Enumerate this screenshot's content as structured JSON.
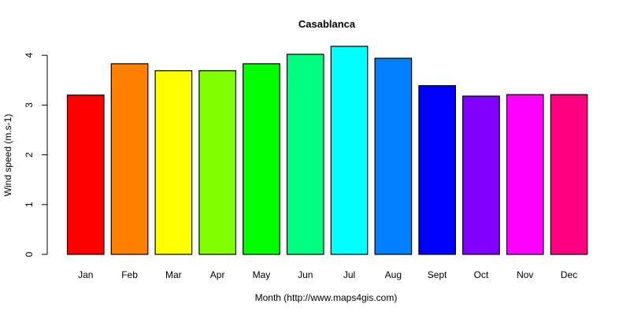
{
  "chart_data": {
    "type": "bar",
    "title": "Casablanca",
    "xlabel": "Month (http://www.maps4gis.com)",
    "ylabel": "Wind speed (m.s-1)",
    "ylim": [
      0,
      4.2
    ],
    "yticks": [
      0,
      1,
      2,
      3,
      4
    ],
    "grid": false,
    "legend": null,
    "categories": [
      "Jan",
      "Feb",
      "Mar",
      "Apr",
      "May",
      "Jun",
      "Jul",
      "Aug",
      "Sept",
      "Oct",
      "Nov",
      "Dec"
    ],
    "values": [
      3.2,
      3.83,
      3.69,
      3.69,
      3.83,
      4.02,
      4.18,
      3.94,
      3.39,
      3.18,
      3.21,
      3.21
    ],
    "colors": [
      "#FF0000",
      "#FF8000",
      "#FFFF00",
      "#80FF00",
      "#00FF00",
      "#00FF80",
      "#00FFFF",
      "#0080FF",
      "#0000FF",
      "#8000FF",
      "#FF00FF",
      "#FF0080"
    ]
  }
}
